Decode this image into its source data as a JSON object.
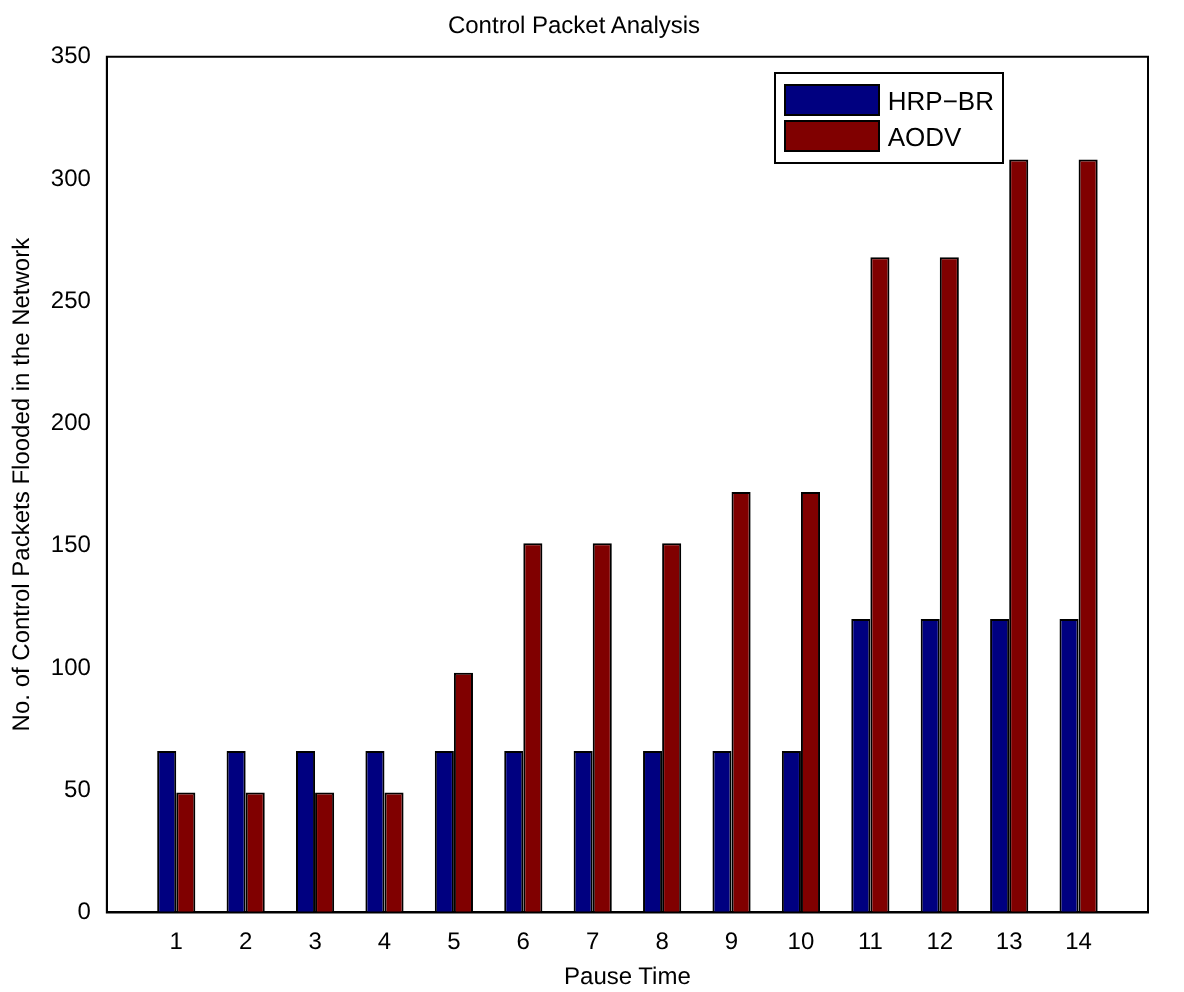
{
  "chart_data": {
    "type": "bar",
    "title": "Control Packet Analysis",
    "xlabel": "Pause Time",
    "ylabel": "No. of Control Packets Flooded in the Network",
    "x": [
      1,
      2,
      3,
      4,
      5,
      6,
      7,
      8,
      9,
      10,
      11,
      12,
      13,
      14
    ],
    "xlim": [
      0,
      15
    ],
    "xticks": [
      1,
      2,
      3,
      4,
      5,
      6,
      7,
      8,
      9,
      10,
      11,
      12,
      13,
      14
    ],
    "series": [
      {
        "name": "HRP−BR",
        "color": "#000080",
        "values": [
          66,
          66,
          66,
          66,
          66,
          66,
          66,
          66,
          66,
          66,
          120,
          120,
          120,
          120
        ]
      },
      {
        "name": "AODV",
        "color": "#800000",
        "values": [
          49,
          49,
          49,
          49,
          98,
          151,
          151,
          151,
          172,
          172,
          268,
          268,
          308,
          308
        ]
      }
    ],
    "ylim": [
      0,
      350
    ],
    "yticks": [
      0,
      50,
      100,
      150,
      200,
      250,
      300,
      350
    ],
    "grid": false,
    "legend": "top right"
  }
}
